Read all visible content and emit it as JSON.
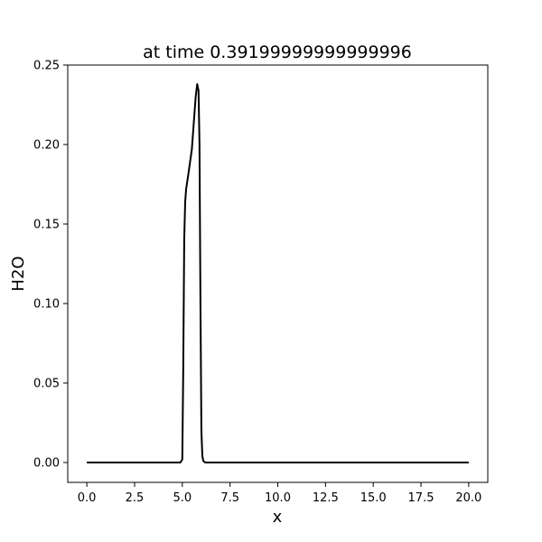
{
  "chart_data": {
    "type": "line",
    "title": "at time 0.39199999999999996",
    "xlabel": "x",
    "ylabel": "H2O",
    "xlim": [
      -1.0,
      21.0
    ],
    "ylim": [
      -0.0125,
      0.25
    ],
    "grid": false,
    "x_ticks": [
      0.0,
      2.5,
      5.0,
      7.5,
      10.0,
      12.5,
      15.0,
      17.5,
      20.0
    ],
    "x_tick_labels": [
      "0.0",
      "2.5",
      "5.0",
      "7.5",
      "10.0",
      "12.5",
      "15.0",
      "17.5",
      "20.0"
    ],
    "y_ticks": [
      0.0,
      0.05,
      0.1,
      0.15,
      0.2,
      0.25
    ],
    "y_tick_labels": [
      "0.00",
      "0.05",
      "0.10",
      "0.15",
      "0.20",
      "0.25"
    ],
    "series": [
      {
        "color": "#000000",
        "x": [
          0.0,
          4.9,
          5.0,
          5.05,
          5.1,
          5.15,
          5.2,
          5.3,
          5.5,
          5.7,
          5.78,
          5.85,
          5.9,
          5.95,
          6.0,
          6.05,
          6.1,
          6.2,
          7.0,
          10.0,
          15.0,
          20.0
        ],
        "y": [
          0.0,
          0.0,
          0.002,
          0.06,
          0.14,
          0.164,
          0.172,
          0.18,
          0.197,
          0.23,
          0.238,
          0.234,
          0.2,
          0.1,
          0.02,
          0.004,
          0.001,
          0.0,
          0.0,
          0.0,
          0.0,
          0.0
        ]
      }
    ]
  }
}
